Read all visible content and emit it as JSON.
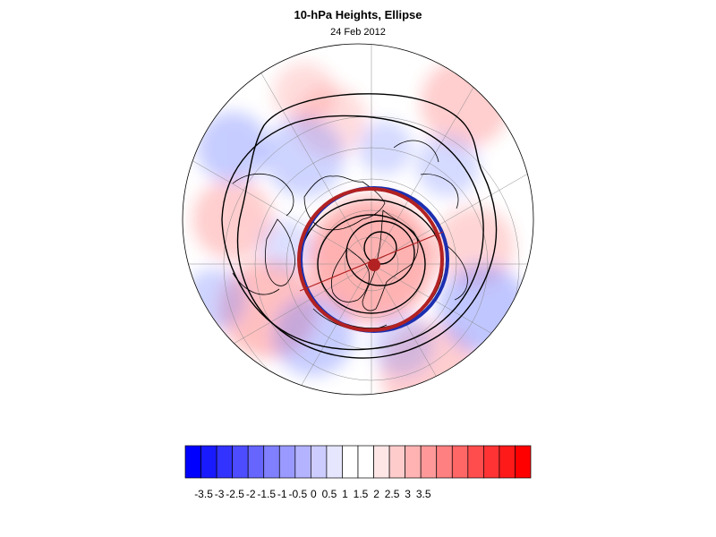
{
  "title": "10-hPa Heights, Ellipse",
  "subtitle": "24 Feb 2012",
  "colorbar": {
    "labels": [
      "-3.5",
      "-3",
      "-2.5",
      "-2",
      "-1.5",
      "-1",
      "-0.5",
      "0",
      "0.5",
      "1",
      "1.5",
      "2",
      "2.5",
      "3",
      "3.5"
    ],
    "colors": [
      "#0000ff",
      "#1a1aff",
      "#3333ff",
      "#4d4dff",
      "#6666ff",
      "#8080ff",
      "#9999ff",
      "#b3b3ff",
      "#ccccff",
      "#e6e6ff",
      "#ffffff",
      "#ffffff",
      "#ffe6e6",
      "#ffcccc",
      "#ffb3b3",
      "#ff9999",
      "#ff8080",
      "#ff6666",
      "#ff4d4d",
      "#ff3333",
      "#ff1a1a",
      "#ff0000"
    ]
  },
  "colors": {
    "negative": "#5a6cff",
    "positive": "#ff5a5a",
    "ellipse_red": "#b22222",
    "ellipse_blue": "#1c2fb0",
    "contour": "#000000"
  }
}
